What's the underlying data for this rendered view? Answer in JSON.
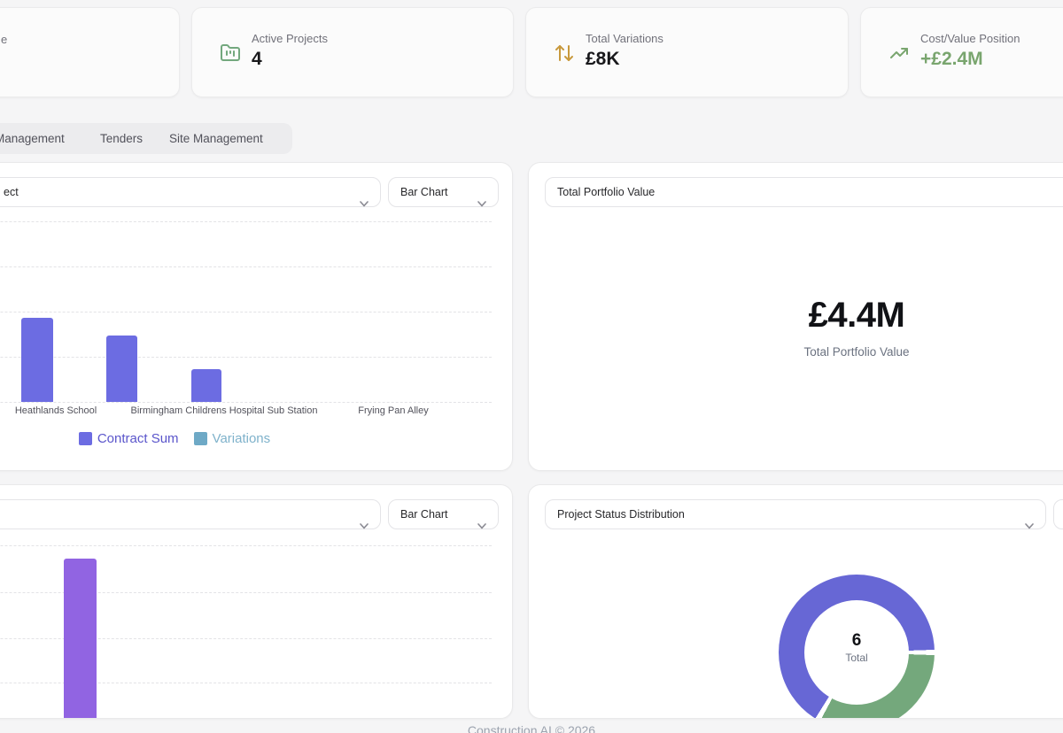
{
  "page": {
    "background": "#f5f5f6",
    "footer_text": "Construction AI © 2026"
  },
  "stat_cards": [
    {
      "label_fragment": "e"
    },
    {
      "label": "Active Projects",
      "value": "4",
      "icon": "folder-kanban-icon",
      "icon_color": "#73a87e"
    },
    {
      "label": "Total Variations",
      "value": "£8K",
      "icon": "arrow-up-down-icon",
      "icon_color": "#c8993d"
    },
    {
      "label": "Cost/Value Position",
      "value": "+£2.4M",
      "icon": "trending-up-icon",
      "icon_color": "#79a56e",
      "value_color": "#79a56e"
    }
  ],
  "tabs": [
    {
      "label": "Management"
    },
    {
      "label": "Tenders"
    },
    {
      "label": "Site Management"
    }
  ],
  "panel_contract": {
    "select_value_fragment": "ect",
    "chart_type": "Bar Chart"
  },
  "panel_portfolio": {
    "select_value": "Total Portfolio Value",
    "big_value": "£4.4M",
    "subtitle": "Total Portfolio Value"
  },
  "panel_second_chart": {
    "chart_type": "Bar Chart"
  },
  "panel_status": {
    "select_value": "Project Status Distribution",
    "center_value": "6",
    "center_label": "Total"
  },
  "chart_data": [
    {
      "type": "bar",
      "panel": "top-left",
      "categories": [
        "Heathlands School",
        "Birmingham Childrens Hospital Sub Station",
        "Frying Pan Alley"
      ],
      "series": [
        {
          "name": "Contract Sum",
          "color": "#6c6ce2",
          "text_color": "#5a55cb",
          "values_relative": [
            0.466,
            0.368,
            0.181
          ]
        },
        {
          "name": "Variations",
          "color": "#6ea9c6",
          "text_color": "#7fb2cb",
          "values_relative": [
            0,
            0,
            0
          ]
        }
      ],
      "legend": [
        "Contract Sum",
        "Variations"
      ],
      "legend_position": "bottom",
      "grid": "horizontal-dashed"
    },
    {
      "type": "bar",
      "panel": "bottom-left",
      "categories": [
        ""
      ],
      "series": [
        {
          "name": "",
          "color": "#9164e2",
          "values_relative": [
            0.93
          ]
        }
      ],
      "grid": "horizontal-dashed"
    },
    {
      "type": "donut",
      "panel": "bottom-right",
      "title": "Project Status Distribution",
      "total": 6,
      "center_label": "Total",
      "segments": [
        {
          "color": "#6767d5",
          "value": 4
        },
        {
          "color": "#74a87c",
          "value": 2
        }
      ]
    }
  ]
}
